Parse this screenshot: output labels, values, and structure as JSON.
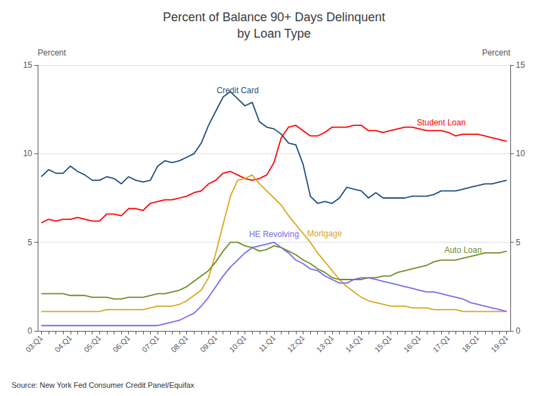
{
  "chart_data": {
    "type": "line",
    "title": "Percent of Balance 90+ Days Delinquent\nby Loan Type",
    "ylabel": "Percent",
    "y2label": "Percent",
    "source": "Source: New York Fed Consumer Credit Panel/Equifax",
    "categories": [
      "03:Q1",
      null,
      null,
      null,
      "04:Q1",
      null,
      null,
      null,
      "05:Q1",
      null,
      null,
      null,
      "06:Q1",
      null,
      null,
      null,
      "07:Q1",
      null,
      null,
      null,
      "08:Q1",
      null,
      null,
      null,
      "09:Q1",
      null,
      null,
      null,
      "10:Q1",
      null,
      null,
      null,
      "11:Q1",
      null,
      null,
      null,
      "12:Q1",
      null,
      null,
      null,
      "13:Q1",
      null,
      null,
      null,
      "14:Q1",
      null,
      null,
      null,
      "15:Q1",
      null,
      null,
      null,
      "16:Q1",
      null,
      null,
      null,
      "17:Q1",
      null,
      null,
      null,
      "18:Q1",
      null,
      null,
      null,
      "19:Q1"
    ],
    "ylim": [
      0,
      15
    ],
    "yticks": [
      0,
      5,
      10,
      15
    ],
    "y2lim": [
      0,
      15
    ],
    "y2ticks": [
      0,
      5,
      10,
      15
    ],
    "grid": true,
    "series": [
      {
        "name": "Credit Card",
        "color": "#1F4E79",
        "values": [
          8.7,
          9.1,
          8.9,
          8.9,
          9.3,
          9.0,
          8.8,
          8.5,
          8.5,
          8.7,
          8.6,
          8.3,
          8.7,
          8.5,
          8.4,
          8.5,
          9.3,
          9.6,
          9.5,
          9.6,
          9.8,
          10.0,
          10.6,
          11.6,
          12.4,
          13.2,
          13.5,
          13.1,
          12.7,
          12.9,
          11.8,
          11.5,
          11.4,
          11.1,
          10.6,
          10.5,
          9.4,
          7.6,
          7.2,
          7.3,
          7.2,
          7.5,
          8.1,
          8.0,
          7.9,
          7.5,
          7.8,
          7.5,
          7.5,
          7.5,
          7.5,
          7.6,
          7.6,
          7.6,
          7.7,
          7.9,
          7.9,
          7.9,
          8.0,
          8.1,
          8.2,
          8.3,
          8.3,
          8.4,
          8.5
        ]
      },
      {
        "name": "Student Loan",
        "color": "#FF0000",
        "values": [
          6.1,
          6.3,
          6.2,
          6.3,
          6.3,
          6.4,
          6.3,
          6.2,
          6.2,
          6.6,
          6.6,
          6.5,
          6.9,
          6.9,
          6.8,
          7.2,
          7.3,
          7.4,
          7.4,
          7.5,
          7.6,
          7.8,
          7.9,
          8.3,
          8.5,
          8.9,
          9.0,
          8.8,
          8.6,
          8.5,
          8.6,
          8.8,
          9.5,
          10.9,
          11.5,
          11.6,
          11.3,
          11.0,
          11.0,
          11.2,
          11.5,
          11.5,
          11.5,
          11.6,
          11.6,
          11.3,
          11.3,
          11.2,
          11.3,
          11.4,
          11.5,
          11.5,
          11.4,
          11.3,
          11.3,
          11.3,
          11.2,
          11.0,
          11.1,
          11.1,
          11.1,
          11.0,
          10.9,
          10.8,
          10.7
        ]
      },
      {
        "name": "Mortgage",
        "color": "#DAA520",
        "values": [
          1.1,
          1.1,
          1.1,
          1.1,
          1.1,
          1.1,
          1.1,
          1.1,
          1.1,
          1.2,
          1.2,
          1.2,
          1.2,
          1.2,
          1.2,
          1.3,
          1.4,
          1.4,
          1.4,
          1.5,
          1.7,
          2.0,
          2.3,
          3.0,
          4.4,
          6.0,
          7.6,
          8.5,
          8.6,
          8.8,
          8.3,
          7.9,
          7.5,
          7.1,
          6.5,
          6.0,
          5.5,
          5.0,
          4.4,
          3.9,
          3.4,
          2.9,
          2.5,
          2.2,
          1.9,
          1.7,
          1.6,
          1.5,
          1.4,
          1.4,
          1.4,
          1.3,
          1.3,
          1.3,
          1.2,
          1.2,
          1.2,
          1.2,
          1.1,
          1.1,
          1.1,
          1.1,
          1.1,
          1.1,
          1.1
        ]
      },
      {
        "name": "Auto Loan",
        "color": "#6B8E23",
        "values": [
          2.1,
          2.1,
          2.1,
          2.1,
          2.0,
          2.0,
          2.0,
          1.9,
          1.9,
          1.9,
          1.8,
          1.8,
          1.9,
          1.9,
          1.9,
          2.0,
          2.1,
          2.1,
          2.2,
          2.3,
          2.5,
          2.8,
          3.1,
          3.4,
          3.9,
          4.5,
          5.0,
          5.0,
          4.8,
          4.7,
          4.5,
          4.6,
          4.8,
          4.7,
          4.5,
          4.3,
          4.0,
          3.8,
          3.5,
          3.3,
          3.0,
          2.9,
          2.9,
          2.9,
          2.9,
          3.0,
          3.0,
          3.1,
          3.1,
          3.3,
          3.4,
          3.5,
          3.6,
          3.7,
          3.9,
          4.0,
          4.0,
          4.0,
          4.1,
          4.2,
          4.3,
          4.4,
          4.4,
          4.4,
          4.5
        ]
      },
      {
        "name": "HE Revolving",
        "color": "#7B68EE",
        "values": [
          0.3,
          0.3,
          0.3,
          0.3,
          0.3,
          0.3,
          0.3,
          0.3,
          0.3,
          0.3,
          0.3,
          0.3,
          0.3,
          0.3,
          0.3,
          0.3,
          0.3,
          0.4,
          0.5,
          0.6,
          0.8,
          1.0,
          1.4,
          1.9,
          2.5,
          3.1,
          3.6,
          4.0,
          4.4,
          4.7,
          4.8,
          4.9,
          5.0,
          4.7,
          4.4,
          4.0,
          3.8,
          3.5,
          3.4,
          3.1,
          2.9,
          2.7,
          2.7,
          2.9,
          3.0,
          3.0,
          2.9,
          2.8,
          2.7,
          2.6,
          2.5,
          2.4,
          2.3,
          2.2,
          2.2,
          2.1,
          2.0,
          1.9,
          1.8,
          1.6,
          1.5,
          1.4,
          1.3,
          1.2,
          1.1
        ]
      }
    ]
  }
}
